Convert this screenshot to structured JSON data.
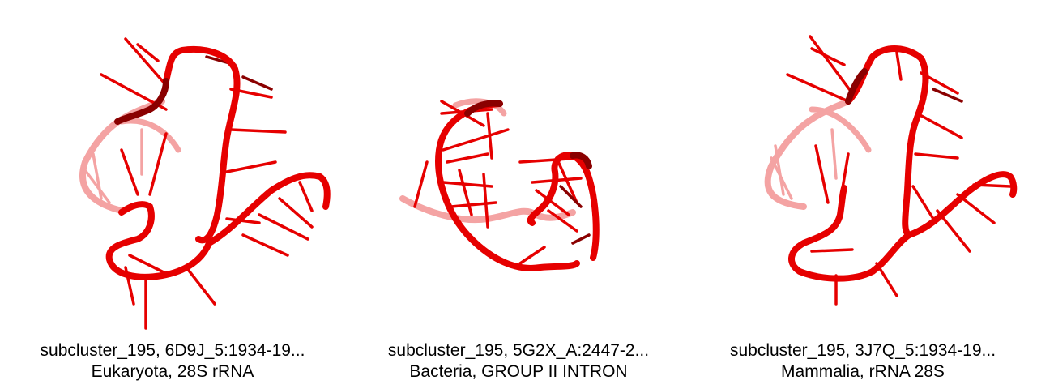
{
  "colors": {
    "strand": "#e60000",
    "dark": "#8a0000",
    "faded": "#f08c8c"
  },
  "panels": [
    {
      "title": "subcluster_195, 6D9J_5:1934-19...",
      "subtitle": "Eukaryota, 28S rRNA"
    },
    {
      "title": "subcluster_195, 5G2X_A:2447-2...",
      "subtitle": "Bacteria, GROUP II INTRON"
    },
    {
      "title": "subcluster_195, 3J7Q_5:1934-19...",
      "subtitle": "Mammalia, rRNA 28S"
    }
  ]
}
